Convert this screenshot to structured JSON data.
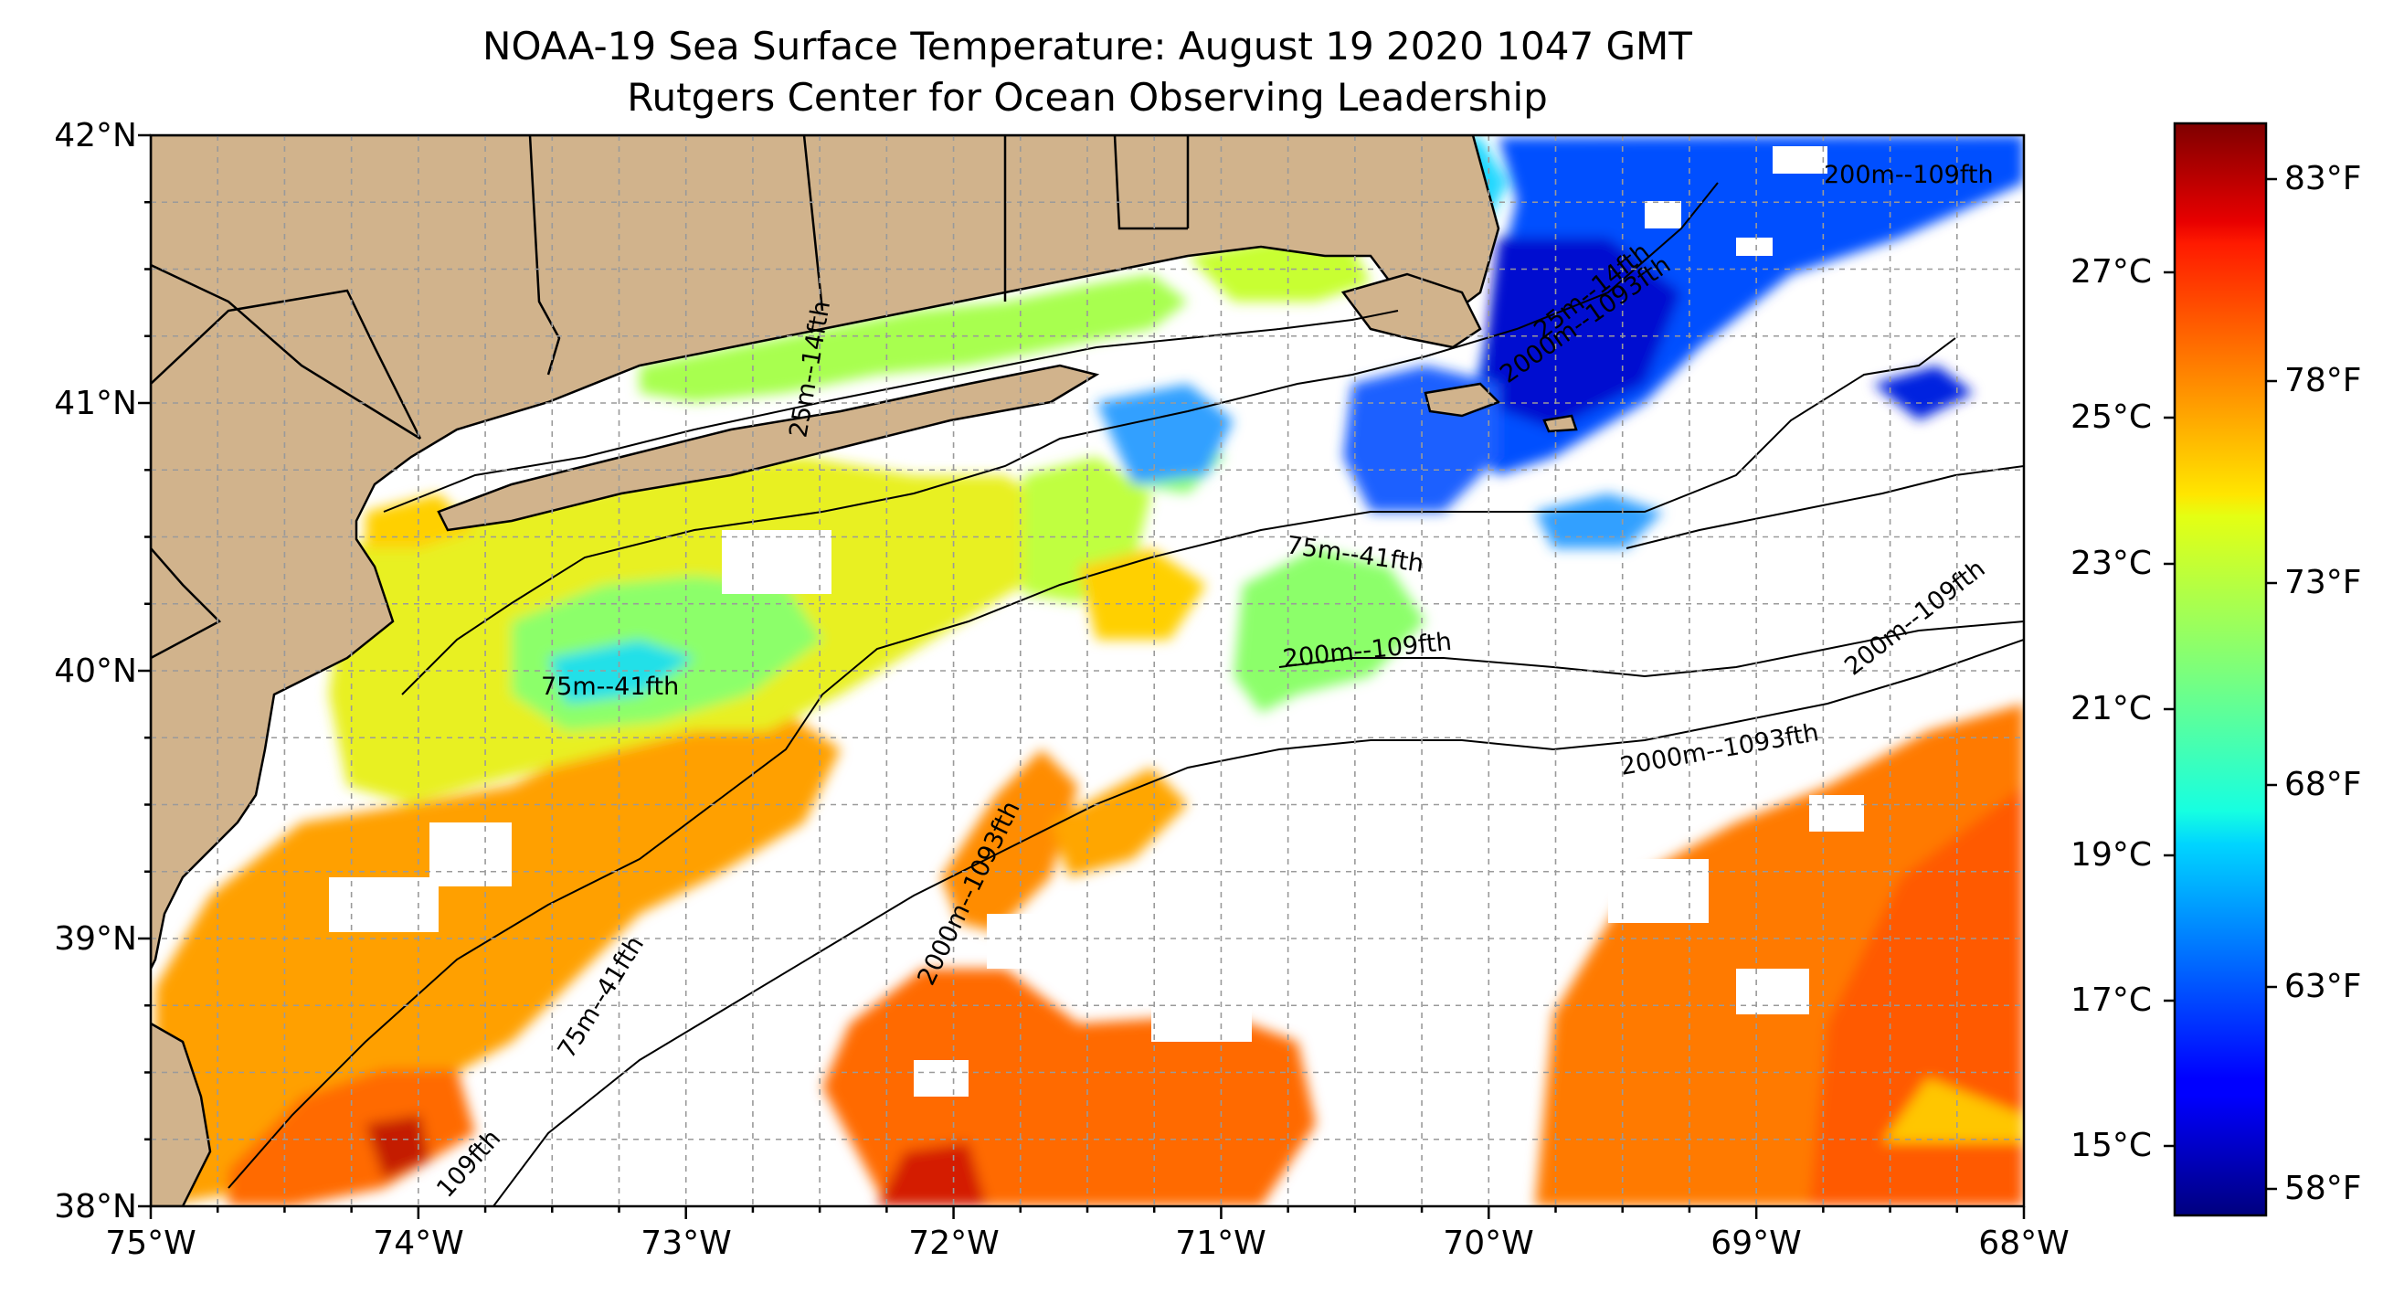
{
  "title": "NOAA-19 Sea Surface Temperature: August 19 2020 1047 GMT",
  "subtitle": "Rutgers Center for Ocean Observing Leadership",
  "map": {
    "extent": {
      "lon_min": -75,
      "lon_max": -68,
      "lat_min": 38,
      "lat_max": 42
    },
    "lat_labels": [
      "38°N",
      "39°N",
      "40°N",
      "41°N",
      "42°N"
    ],
    "lon_labels": [
      "75°W",
      "74°W",
      "73°W",
      "72°W",
      "71°W",
      "70°W",
      "69°W",
      "68°W"
    ],
    "gridlines": "dashed",
    "land_color": "#d1b38c",
    "no_data_color": "#ffffff"
  },
  "contours": {
    "labels": [
      "75m--41fth",
      "200m--109fth",
      "2000m--1093fth",
      "25m--14fth",
      "109fth",
      "75m--41fth",
      "200m--109fth",
      "2000m--1093fth",
      "75m--41fth",
      "200m--109fth",
      "2000m--1093fth",
      "25m--14fth"
    ]
  },
  "colorbar": {
    "colormap": "jet",
    "celsius_labels": [
      "15°C",
      "17°C",
      "19°C",
      "21°C",
      "23°C",
      "25°C",
      "27°C"
    ],
    "fahrenheit_labels": [
      "58°F",
      "63°F",
      "68°F",
      "73°F",
      "78°F",
      "83°F"
    ]
  }
}
